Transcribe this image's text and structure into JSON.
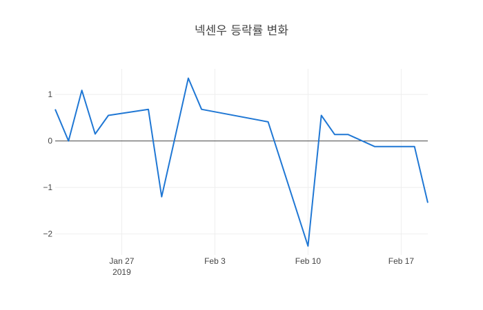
{
  "chart_data": {
    "type": "line",
    "title": "넥센우 등락률 변화",
    "xlabel": "",
    "ylabel": "",
    "x": [
      "2019-01-22",
      "2019-01-23",
      "2019-01-24",
      "2019-01-25",
      "2019-01-26",
      "2019-01-29",
      "2019-01-30",
      "2019-01-31",
      "2019-02-01",
      "2019-02-02",
      "2019-02-07",
      "2019-02-10",
      "2019-02-11",
      "2019-02-12",
      "2019-02-13",
      "2019-02-15",
      "2019-02-18",
      "2019-02-19"
    ],
    "values": [
      0.68,
      0.0,
      1.09,
      0.15,
      0.55,
      0.68,
      -1.2,
      0.07,
      1.35,
      0.68,
      0.41,
      -2.26,
      0.55,
      0.14,
      0.14,
      -0.12,
      -0.12,
      -1.33
    ],
    "xlim": [
      "2019-01-22",
      "2019-02-19"
    ],
    "ylim": [
      -2.45,
      1.55
    ],
    "x_ticks": [
      {
        "date": "2019-01-27",
        "label": "Jan 27",
        "sublabel": "2019"
      },
      {
        "date": "2019-02-03",
        "label": "Feb 3",
        "sublabel": ""
      },
      {
        "date": "2019-02-10",
        "label": "Feb 10",
        "sublabel": ""
      },
      {
        "date": "2019-02-17",
        "label": "Feb 17",
        "sublabel": ""
      }
    ],
    "y_ticks": [
      {
        "value": 1,
        "label": "1"
      },
      {
        "value": 0,
        "label": "0"
      },
      {
        "value": -1,
        "label": "−1"
      },
      {
        "value": -2,
        "label": "−2"
      }
    ],
    "grid": true,
    "legend": "none"
  },
  "colors": {
    "series": "#1f77d4",
    "grid": "#eeeeee",
    "zero_line": "#444444",
    "text": "#444444"
  }
}
